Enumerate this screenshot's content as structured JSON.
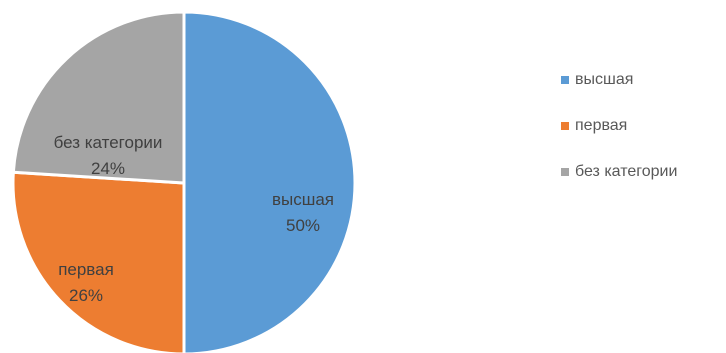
{
  "chart_data": {
    "type": "pie",
    "categories": [
      "высшая",
      "первая",
      "без категории"
    ],
    "values": [
      50,
      26,
      24
    ],
    "labels": [
      "50%",
      "26%",
      "24%"
    ],
    "colors": [
      "#5B9BD5",
      "#ED7D31",
      "#A5A5A5"
    ],
    "label_color": "#404040",
    "legend_position": "right"
  }
}
